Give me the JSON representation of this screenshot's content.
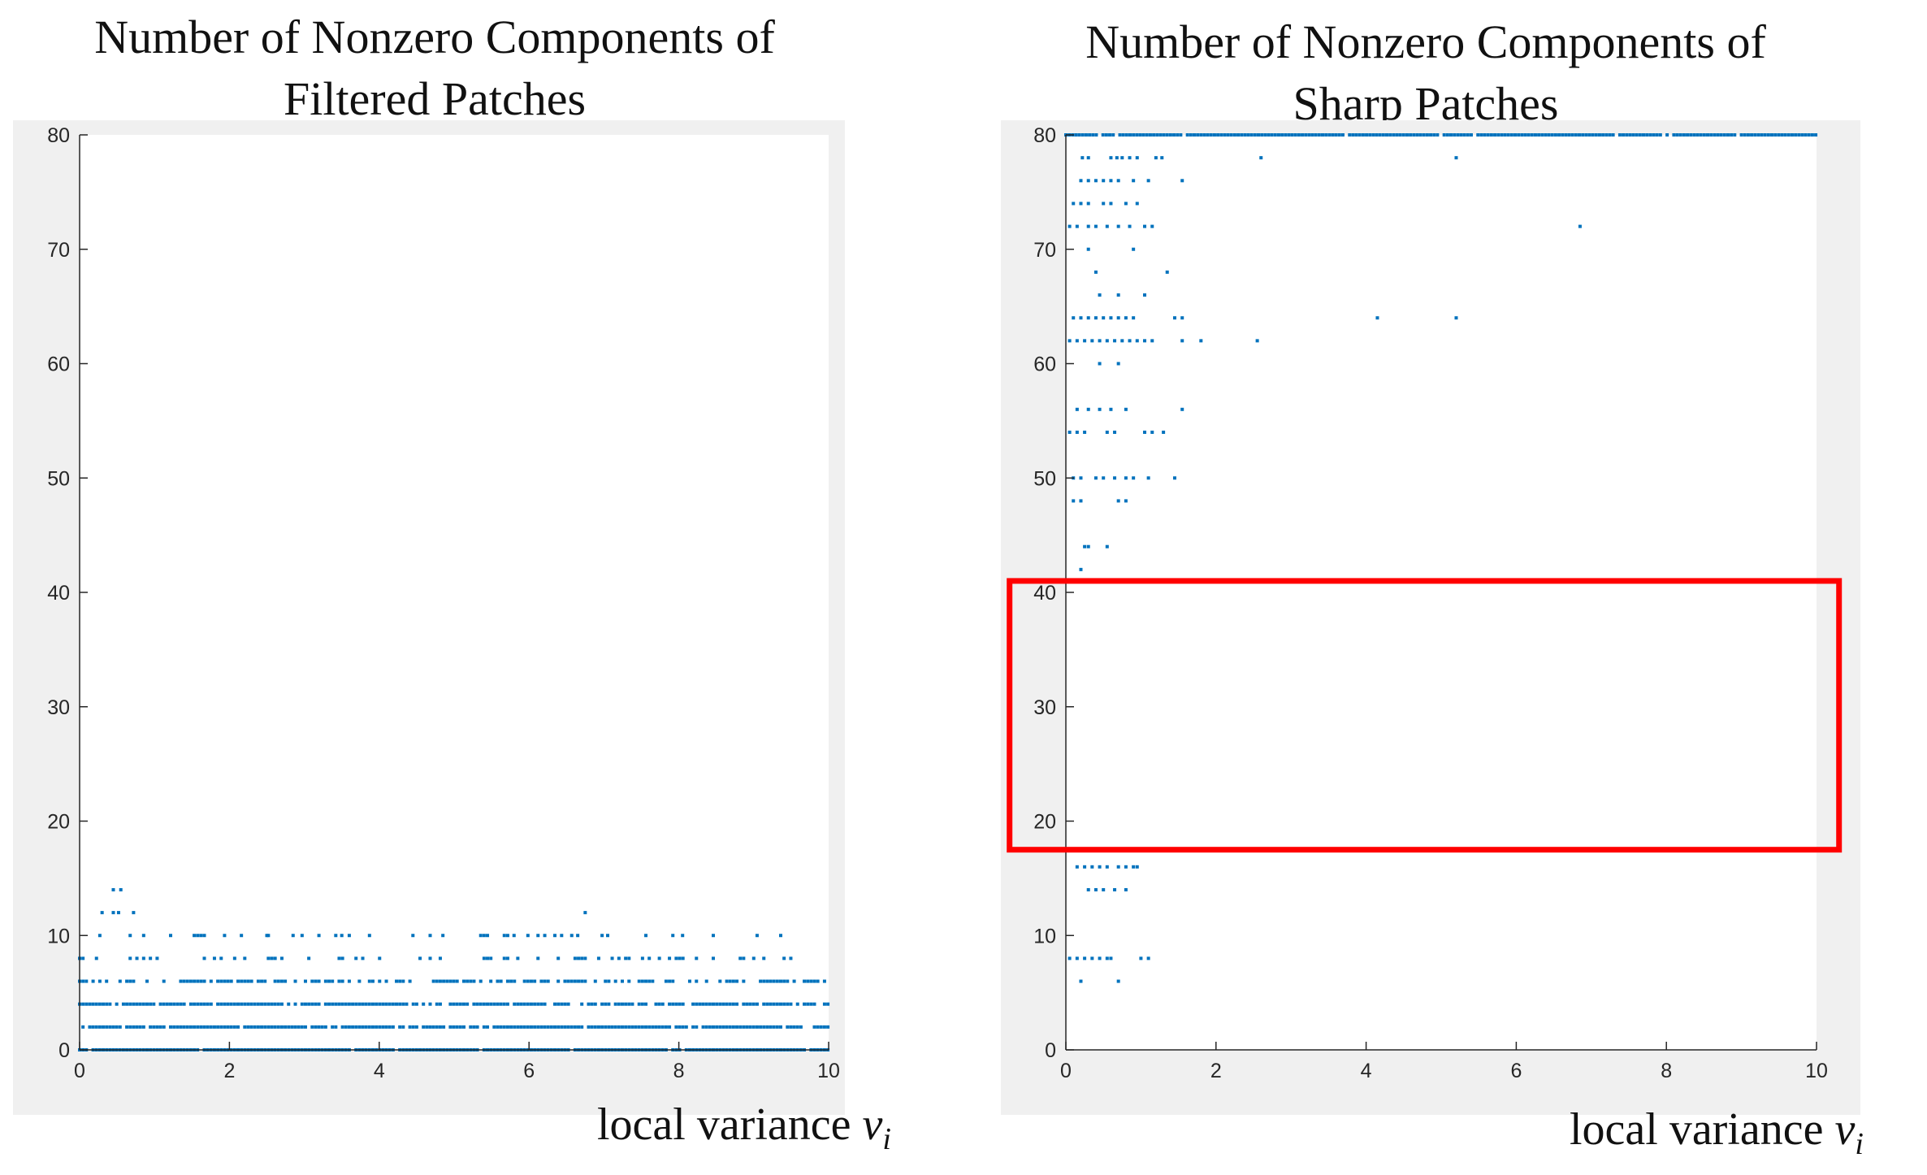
{
  "chart_data": [
    {
      "type": "scatter",
      "title_line1": "Number of Nonzero Components of",
      "title_line2": "Filtered Patches",
      "xlabel": "local variance",
      "xlabel_symbol": "v",
      "xlabel_subscript": "i",
      "xlim": [
        0,
        10
      ],
      "ylim": [
        0,
        80
      ],
      "xticks": [
        0,
        2,
        4,
        6,
        8,
        10
      ],
      "yticks": [
        0,
        10,
        20,
        30,
        40,
        50,
        60,
        70,
        80
      ],
      "grid": false,
      "marker_color": "#0072bd",
      "bands": [
        {
          "y": 0,
          "x_start": 0,
          "x_end": 10,
          "density": 0.95
        },
        {
          "y": 2,
          "x_start": 0,
          "x_end": 10,
          "density": 0.9
        },
        {
          "y": 4,
          "x_start": 0,
          "x_end": 10,
          "density": 0.85
        },
        {
          "y": 6,
          "x_start": 0,
          "x_end": 10,
          "density": 0.55
        },
        {
          "y": 8,
          "x_start": 0,
          "x_end": 10,
          "density": 0.3
        },
        {
          "y": 10,
          "x_start": 0,
          "x_end": 9.5,
          "density": 0.12
        }
      ],
      "points": [
        [
          0.45,
          14
        ],
        [
          0.55,
          14
        ],
        [
          0.3,
          12
        ],
        [
          0.45,
          12
        ],
        [
          0.52,
          12
        ],
        [
          0.72,
          12
        ],
        [
          6.75,
          12
        ],
        [
          2.5,
          10
        ],
        [
          2.85,
          10
        ],
        [
          3.5,
          10
        ],
        [
          4.45,
          10
        ],
        [
          4.85,
          10
        ],
        [
          5.8,
          10
        ],
        [
          6.65,
          10
        ],
        [
          7.05,
          10
        ],
        [
          8.05,
          10
        ]
      ]
    },
    {
      "type": "scatter",
      "title_line1": "Number of Nonzero Components of",
      "title_line2": "Sharp Patches",
      "xlabel": "local variance",
      "xlabel_symbol": "v",
      "xlabel_subscript": "i",
      "xlim": [
        0,
        10
      ],
      "ylim": [
        0,
        80
      ],
      "xticks": [
        0,
        2,
        4,
        6,
        8,
        10
      ],
      "yticks": [
        0,
        10,
        20,
        30,
        40,
        50,
        60,
        70,
        80
      ],
      "grid": false,
      "marker_color": "#0072bd",
      "highlight_box_color": "#ff0000",
      "highlight_box": {
        "x": [
          -0.75,
          10.3
        ],
        "y": [
          17.5,
          41
        ]
      },
      "bands": [
        {
          "y": 80,
          "x_start": 0,
          "x_end": 10,
          "density": 0.95
        }
      ],
      "points": [
        [
          0.22,
          78
        ],
        [
          0.3,
          78
        ],
        [
          0.6,
          78
        ],
        [
          0.68,
          78
        ],
        [
          0.75,
          78
        ],
        [
          0.85,
          78
        ],
        [
          0.95,
          78
        ],
        [
          1.2,
          78
        ],
        [
          1.28,
          78
        ],
        [
          2.6,
          78
        ],
        [
          5.2,
          78
        ],
        [
          0.2,
          76
        ],
        [
          0.3,
          76
        ],
        [
          0.4,
          76
        ],
        [
          0.5,
          76
        ],
        [
          0.6,
          76
        ],
        [
          0.7,
          76
        ],
        [
          0.9,
          76
        ],
        [
          1.1,
          76
        ],
        [
          1.55,
          76
        ],
        [
          0.1,
          74
        ],
        [
          0.2,
          74
        ],
        [
          0.3,
          74
        ],
        [
          0.5,
          74
        ],
        [
          0.6,
          74
        ],
        [
          0.8,
          74
        ],
        [
          0.95,
          74
        ],
        [
          0.05,
          72
        ],
        [
          0.15,
          72
        ],
        [
          0.3,
          72
        ],
        [
          0.4,
          72
        ],
        [
          0.55,
          72
        ],
        [
          0.7,
          72
        ],
        [
          0.85,
          72
        ],
        [
          1.05,
          72
        ],
        [
          1.15,
          72
        ],
        [
          6.85,
          72
        ],
        [
          0.3,
          70
        ],
        [
          0.9,
          70
        ],
        [
          0.4,
          68
        ],
        [
          1.35,
          68
        ],
        [
          0.45,
          66
        ],
        [
          0.7,
          66
        ],
        [
          1.05,
          66
        ],
        [
          0.1,
          64
        ],
        [
          0.2,
          64
        ],
        [
          0.3,
          64
        ],
        [
          0.4,
          64
        ],
        [
          0.5,
          64
        ],
        [
          0.6,
          64
        ],
        [
          0.7,
          64
        ],
        [
          0.8,
          64
        ],
        [
          0.9,
          64
        ],
        [
          1.45,
          64
        ],
        [
          1.55,
          64
        ],
        [
          4.15,
          64
        ],
        [
          5.2,
          64
        ],
        [
          0.05,
          62
        ],
        [
          0.15,
          62
        ],
        [
          0.25,
          62
        ],
        [
          0.35,
          62
        ],
        [
          0.45,
          62
        ],
        [
          0.55,
          62
        ],
        [
          0.65,
          62
        ],
        [
          0.75,
          62
        ],
        [
          0.85,
          62
        ],
        [
          0.95,
          62
        ],
        [
          1.05,
          62
        ],
        [
          1.15,
          62
        ],
        [
          1.55,
          62
        ],
        [
          1.8,
          62
        ],
        [
          2.55,
          62
        ],
        [
          0.45,
          60
        ],
        [
          0.7,
          60
        ],
        [
          0.15,
          56
        ],
        [
          0.3,
          56
        ],
        [
          0.45,
          56
        ],
        [
          0.6,
          56
        ],
        [
          0.8,
          56
        ],
        [
          1.55,
          56
        ],
        [
          0.05,
          54
        ],
        [
          0.15,
          54
        ],
        [
          0.25,
          54
        ],
        [
          0.55,
          54
        ],
        [
          0.65,
          54
        ],
        [
          1.05,
          54
        ],
        [
          1.15,
          54
        ],
        [
          1.3,
          54
        ],
        [
          0.1,
          50
        ],
        [
          0.2,
          50
        ],
        [
          0.4,
          50
        ],
        [
          0.5,
          50
        ],
        [
          0.65,
          50
        ],
        [
          0.8,
          50
        ],
        [
          0.9,
          50
        ],
        [
          1.1,
          50
        ],
        [
          1.45,
          50
        ],
        [
          0.1,
          48
        ],
        [
          0.2,
          48
        ],
        [
          0.7,
          48
        ],
        [
          0.8,
          48
        ],
        [
          0.25,
          44
        ],
        [
          0.3,
          44
        ],
        [
          0.55,
          44
        ],
        [
          0.2,
          42
        ],
        [
          0.15,
          16
        ],
        [
          0.25,
          16
        ],
        [
          0.35,
          16
        ],
        [
          0.45,
          16
        ],
        [
          0.55,
          16
        ],
        [
          0.7,
          16
        ],
        [
          0.8,
          16
        ],
        [
          0.9,
          16
        ],
        [
          0.95,
          16
        ],
        [
          0.3,
          14
        ],
        [
          0.4,
          14
        ],
        [
          0.5,
          14
        ],
        [
          0.65,
          14
        ],
        [
          0.8,
          14
        ],
        [
          0.05,
          8
        ],
        [
          0.15,
          8
        ],
        [
          0.25,
          8
        ],
        [
          0.35,
          8
        ],
        [
          0.45,
          8
        ],
        [
          0.55,
          8
        ],
        [
          0.6,
          8
        ],
        [
          1.0,
          8
        ],
        [
          1.1,
          8
        ],
        [
          0.2,
          6
        ],
        [
          0.7,
          6
        ]
      ]
    }
  ]
}
